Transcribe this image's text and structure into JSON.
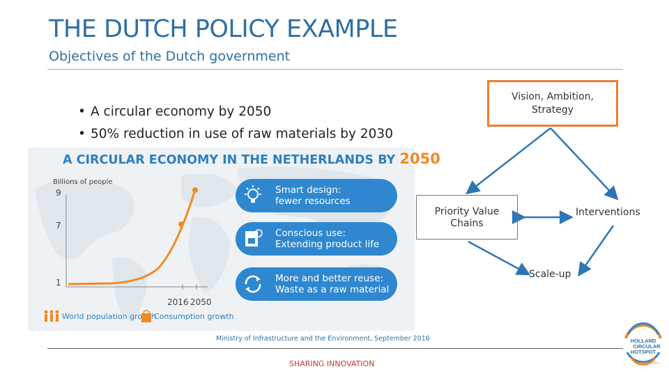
{
  "slide": {
    "title": "THE DUTCH POLICY EXAMPLE",
    "subtitle": "Objectives of the Dutch government",
    "bullets": [
      "A circular economy by 2050",
      "50% reduction in use of raw materials by 2030"
    ]
  },
  "infographic": {
    "title": "A CIRCULAR ECONOMY IN THE NETHERLANDS BY",
    "title_year": "2050",
    "ylabel": "Billions of people",
    "yticks": [
      "9",
      "7",
      "1"
    ],
    "xticks": [
      "2016",
      "2050"
    ],
    "legend": [
      "World population growth",
      "Consumption growth"
    ],
    "pills": [
      {
        "line1": "Smart design:",
        "line2": "fewer resources",
        "icon": "lightbulb-icon"
      },
      {
        "line1": "Conscious use:",
        "line2": "Extending product life",
        "icon": "coffee-machine-icon"
      },
      {
        "line1": "More and better reuse:",
        "line2": "Waste as a raw material",
        "icon": "recycle-icon"
      }
    ],
    "credit": "Ministry of Infrastructure and the Environment, September 2016",
    "colors": {
      "accent": "#f08a24",
      "blue": "#2f88cf"
    }
  },
  "diagram": {
    "vision": "Vision, Ambition, Strategy",
    "priority_line1": "Priority Value",
    "priority_line2": "Chains",
    "interventions": "Interventions",
    "scaleup": "Scale-up",
    "colors": {
      "arrow": "#2e75b6",
      "vision_border": "#ef7d31"
    }
  },
  "footer": {
    "text": "SHARING INNOVATION",
    "color": "#c0392b"
  },
  "logo": {
    "line1": "HOLLAND",
    "line2": "CIRCULAR",
    "line3": "HOTSPOT",
    "tagline": "sharing innovation"
  }
}
